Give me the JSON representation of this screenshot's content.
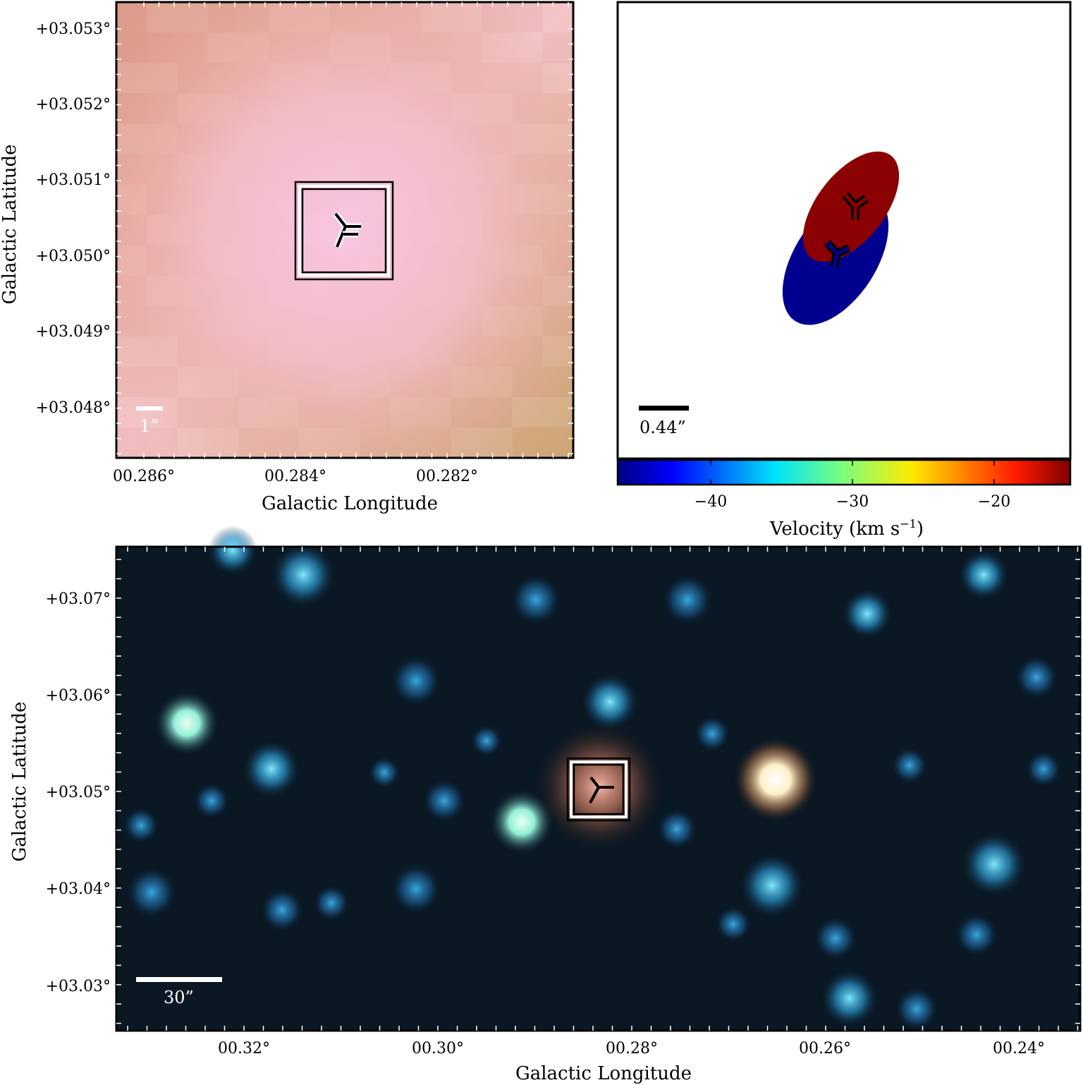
{
  "figure": {
    "top_left": {
      "xlabel": "Galactic Longitude",
      "ylabel": "Galactic Latitude",
      "xticks": [
        "00.286°",
        "00.284°",
        "00.282°"
      ],
      "yticks": [
        "+03.053°",
        "+03.052°",
        "+03.051°",
        "+03.050°",
        "+03.049°",
        "+03.048°"
      ],
      "scalebar_label": "1”"
    },
    "top_right": {
      "scalebar_label": "0.44”",
      "colorbar": {
        "label": "Velocity (km s",
        "label_sup": "−1",
        "label_close": ")",
        "ticks": [
          "−40",
          "−30",
          "−20"
        ],
        "range": [
          -47,
          -15
        ]
      },
      "components": [
        {
          "color": "#00008f",
          "velocity": -46
        },
        {
          "color": "#8b0000",
          "velocity": -16
        }
      ]
    },
    "bottom": {
      "xlabel": "Galactic Longitude",
      "ylabel": "Galactic Latitude",
      "xticks": [
        "00.32°",
        "00.30°",
        "00.28°",
        "00.26°",
        "00.24°"
      ],
      "yticks": [
        "+03.07°",
        "+03.06°",
        "+03.05°",
        "+03.04°",
        "+03.03°"
      ],
      "scalebar_label": "30”"
    }
  }
}
